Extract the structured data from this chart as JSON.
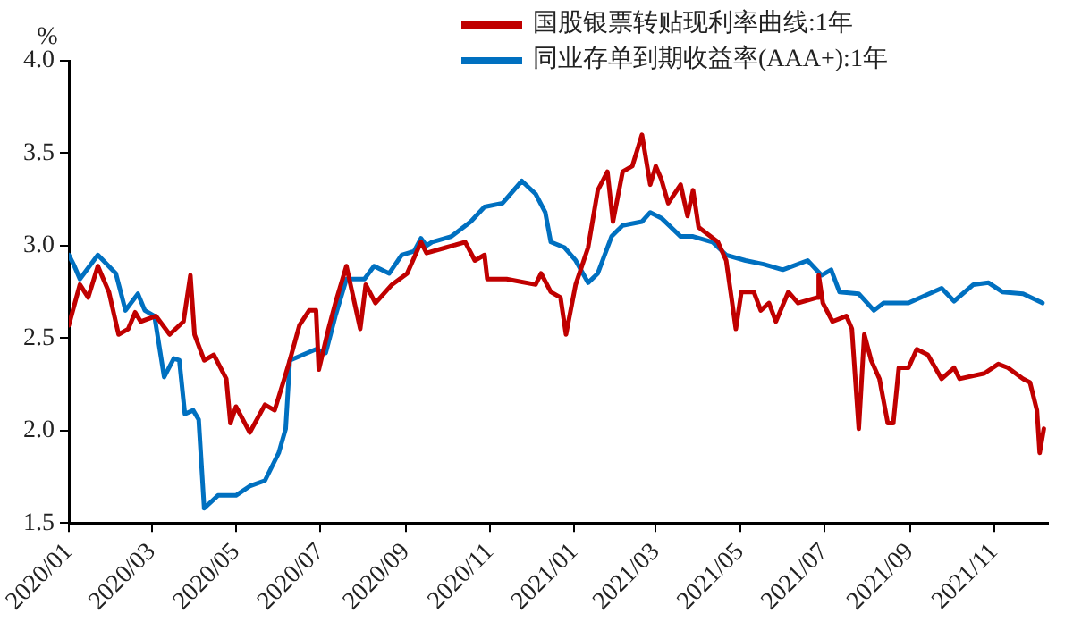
{
  "chart_data": {
    "type": "line",
    "ylabel": "%",
    "legend": "top",
    "grid": false,
    "marker": "none",
    "line_style": "solid",
    "xlim": [
      "2020-01-01",
      "2021-12-10"
    ],
    "xticks": [
      {
        "value": "2020-01",
        "label": "2020/01"
      },
      {
        "value": "2020-03",
        "label": "2020/03"
      },
      {
        "value": "2020-05",
        "label": "2020/05"
      },
      {
        "value": "2020-07",
        "label": "2020/07"
      },
      {
        "value": "2020-09",
        "label": "2020/09"
      },
      {
        "value": "2020-11",
        "label": "2020/11"
      },
      {
        "value": "2021-01",
        "label": "2021/01"
      },
      {
        "value": "2021-03",
        "label": "2021/03"
      },
      {
        "value": "2021-05",
        "label": "2021/05"
      },
      {
        "value": "2021-07",
        "label": "2021/07"
      },
      {
        "value": "2021-09",
        "label": "2021/09"
      },
      {
        "value": "2021-11",
        "label": "2021/11"
      }
    ],
    "ylim": [
      1.5,
      4.0
    ],
    "yticks": [
      1.5,
      {
        "value": 2,
        "label": "2.0"
      },
      2.5,
      {
        "value": 3,
        "label": "3.0"
      },
      3.5,
      {
        "value": 4,
        "label": "4.0"
      }
    ],
    "series": [
      {
        "name": "国股银票转贴现利率曲线:1年",
        "color": "#c00000",
        "x": [
          "2020-01-01",
          "2020-01-09",
          "2020-01-15",
          "2020-01-22",
          "2020-01-30",
          "2020-02-06",
          "2020-02-13",
          "2020-02-18",
          "2020-02-22",
          "2020-03-04",
          "2020-03-14",
          "2020-03-24",
          "2020-03-29",
          "2020-04-01",
          "2020-04-08",
          "2020-04-15",
          "2020-04-24",
          "2020-04-27",
          "2020-05-01",
          "2020-05-11",
          "2020-05-22",
          "2020-05-29",
          "2020-06-05",
          "2020-06-09",
          "2020-06-16",
          "2020-06-23",
          "2020-06-28",
          "2020-06-30",
          "2020-07-07",
          "2020-07-12",
          "2020-07-20",
          "2020-07-30",
          "2020-08-03",
          "2020-08-10",
          "2020-08-22",
          "2020-09-02",
          "2020-09-12",
          "2020-09-16",
          "2020-09-30",
          "2020-10-14",
          "2020-10-21",
          "2020-10-28",
          "2020-10-30",
          "2020-11-06",
          "2020-11-13",
          "2020-12-04",
          "2020-12-08",
          "2020-12-15",
          "2020-12-22",
          "2020-12-26",
          "2021-01-02",
          "2021-01-11",
          "2021-01-18",
          "2021-01-25",
          "2021-01-29",
          "2021-02-05",
          "2021-02-12",
          "2021-02-19",
          "2021-02-25",
          "2021-03-01",
          "2021-03-05",
          "2021-03-10",
          "2021-03-19",
          "2021-03-24",
          "2021-03-28",
          "2021-04-01",
          "2021-04-15",
          "2021-04-21",
          "2021-04-28",
          "2021-05-02",
          "2021-05-11",
          "2021-05-16",
          "2021-05-22",
          "2021-05-27",
          "2021-06-05",
          "2021-06-12",
          "2021-06-26",
          "2021-06-27",
          "2021-06-30",
          "2021-07-07",
          "2021-07-17",
          "2021-07-21",
          "2021-07-26",
          "2021-07-30",
          "2021-08-04",
          "2021-08-10",
          "2021-08-16",
          "2021-08-20",
          "2021-08-24",
          "2021-08-31",
          "2021-09-06",
          "2021-09-14",
          "2021-09-24",
          "2021-10-03",
          "2021-10-07",
          "2021-10-25",
          "2021-11-04",
          "2021-11-11",
          "2021-11-22",
          "2021-11-27",
          "2021-12-02",
          "2021-12-04",
          "2021-12-07"
        ],
        "values": [
          2.57,
          2.79,
          2.72,
          2.89,
          2.75,
          2.52,
          2.55,
          2.64,
          2.59,
          2.62,
          2.52,
          2.59,
          2.84,
          2.52,
          2.38,
          2.41,
          2.28,
          2.04,
          2.13,
          1.99,
          2.14,
          2.11,
          2.28,
          2.38,
          2.57,
          2.65,
          2.65,
          2.33,
          2.55,
          2.69,
          2.89,
          2.55,
          2.79,
          2.69,
          2.79,
          2.85,
          3.02,
          2.96,
          2.99,
          3.02,
          2.92,
          2.95,
          2.82,
          2.82,
          2.82,
          2.79,
          2.85,
          2.75,
          2.72,
          2.52,
          2.79,
          2.99,
          3.3,
          3.4,
          3.13,
          3.4,
          3.43,
          3.6,
          3.33,
          3.43,
          3.36,
          3.23,
          3.33,
          3.16,
          3.3,
          3.1,
          3.02,
          2.92,
          2.55,
          2.75,
          2.75,
          2.65,
          2.69,
          2.59,
          2.75,
          2.69,
          2.72,
          2.84,
          2.69,
          2.59,
          2.62,
          2.55,
          2.01,
          2.52,
          2.38,
          2.28,
          2.04,
          2.04,
          2.34,
          2.34,
          2.44,
          2.41,
          2.28,
          2.34,
          2.28,
          2.31,
          2.36,
          2.34,
          2.28,
          2.26,
          2.11,
          1.88,
          2.01
        ]
      },
      {
        "name": "同业存单到期收益率(AAA+):1年",
        "color": "#0070c0",
        "x": [
          "2020-01-01",
          "2020-01-05",
          "2020-01-09",
          "2020-01-22",
          "2020-02-04",
          "2020-02-11",
          "2020-02-20",
          "2020-02-25",
          "2020-03-03",
          "2020-03-10",
          "2020-03-17",
          "2020-03-21",
          "2020-03-25",
          "2020-03-31",
          "2020-04-04",
          "2020-04-08",
          "2020-04-18",
          "2020-05-01",
          "2020-05-11",
          "2020-05-22",
          "2020-06-01",
          "2020-06-06",
          "2020-06-09",
          "2020-06-28",
          "2020-07-05",
          "2020-07-12",
          "2020-07-20",
          "2020-08-02",
          "2020-08-09",
          "2020-08-20",
          "2020-08-29",
          "2020-09-07",
          "2020-09-12",
          "2020-09-16",
          "2020-09-20",
          "2020-10-04",
          "2020-10-18",
          "2020-10-28",
          "2020-11-10",
          "2020-11-24",
          "2020-12-04",
          "2020-12-11",
          "2020-12-15",
          "2020-12-25",
          "2021-01-02",
          "2021-01-11",
          "2021-01-18",
          "2021-01-28",
          "2021-02-05",
          "2021-02-19",
          "2021-02-25",
          "2021-03-05",
          "2021-03-19",
          "2021-03-28",
          "2021-04-11",
          "2021-04-21",
          "2021-05-05",
          "2021-05-18",
          "2021-06-01",
          "2021-06-19",
          "2021-06-29",
          "2021-07-06",
          "2021-07-12",
          "2021-07-26",
          "2021-08-06",
          "2021-08-13",
          "2021-08-31",
          "2021-09-24",
          "2021-10-03",
          "2021-10-17",
          "2021-10-28",
          "2021-11-07",
          "2021-11-22",
          "2021-12-06"
        ],
        "values": [
          2.95,
          2.89,
          2.82,
          2.95,
          2.85,
          2.65,
          2.74,
          2.65,
          2.62,
          2.29,
          2.39,
          2.38,
          2.09,
          2.11,
          2.06,
          1.58,
          1.65,
          1.65,
          1.7,
          1.73,
          1.88,
          2.01,
          2.38,
          2.44,
          2.42,
          2.62,
          2.82,
          2.82,
          2.89,
          2.85,
          2.95,
          2.97,
          3.04,
          3.0,
          3.02,
          3.05,
          3.13,
          3.21,
          3.23,
          3.35,
          3.28,
          3.18,
          3.02,
          2.99,
          2.92,
          2.8,
          2.85,
          3.05,
          3.11,
          3.13,
          3.18,
          3.15,
          3.05,
          3.05,
          3.02,
          2.95,
          2.92,
          2.9,
          2.87,
          2.92,
          2.84,
          2.87,
          2.75,
          2.74,
          2.65,
          2.69,
          2.69,
          2.77,
          2.7,
          2.79,
          2.8,
          2.75,
          2.74,
          2.69
        ]
      }
    ]
  }
}
